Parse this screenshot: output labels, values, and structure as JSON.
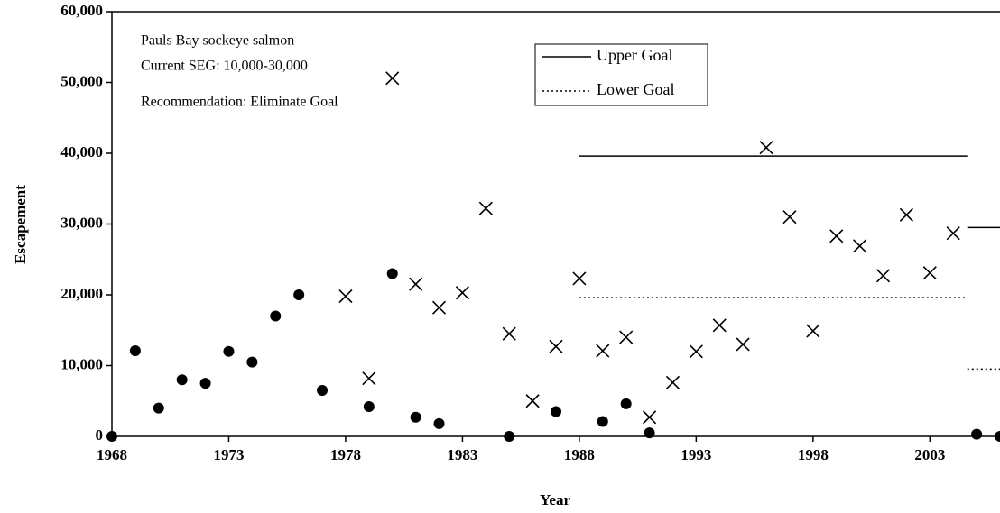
{
  "chart_data": {
    "type": "scatter",
    "x_label": "Year",
    "y_label": "Escapement",
    "annotations": [
      "Pauls Bay sockeye salmon",
      "Current SEG:  10,000-30,000",
      "Recommendation: Eliminate Goal"
    ],
    "xlim": [
      1968,
      2006
    ],
    "xticks": [
      1968,
      1973,
      1978,
      1983,
      1988,
      1993,
      1998,
      2003
    ],
    "ylim": [
      0,
      60000
    ],
    "yticks": [
      0,
      {
        "value": 10000,
        "label": "10,000"
      },
      {
        "value": 20000,
        "label": "20,000"
      },
      {
        "value": 30000,
        "label": "30,000"
      },
      {
        "value": 40000,
        "label": "40,000"
      },
      {
        "value": 50000,
        "label": "50,000"
      },
      {
        "value": 60000,
        "label": "60,000"
      }
    ],
    "series": [
      {
        "marker": "circle",
        "color": "#000000",
        "x": [
          1968,
          1969,
          1970,
          1971,
          1972,
          1973,
          1974,
          1975,
          1976,
          1977,
          1979,
          1980,
          1981,
          1982,
          1985,
          1987,
          1989,
          1990,
          1991,
          2005,
          2006
        ],
        "values": [
          0,
          12100,
          4000,
          8000,
          7500,
          12000,
          10500,
          17000,
          20000,
          6500,
          4200,
          23000,
          2700,
          1800,
          0,
          3500,
          2100,
          4600,
          500,
          300,
          0
        ]
      },
      {
        "marker": "x",
        "color": "#000000",
        "x": [
          1978,
          1979,
          1980,
          1981,
          1982,
          1983,
          1984,
          1985,
          1986,
          1987,
          1988,
          1989,
          1990,
          1991,
          1992,
          1993,
          1994,
          1995,
          1996,
          1997,
          1998,
          1999,
          2000,
          2001,
          2002,
          2003,
          2004
        ],
        "values": [
          19800,
          8200,
          50600,
          21500,
          18200,
          20300,
          32200,
          14500,
          5000,
          12700,
          22300,
          12100,
          14000,
          2700,
          7600,
          12000,
          15700,
          13000,
          40800,
          31000,
          14900,
          28300,
          26900,
          22700,
          31300,
          23100,
          28700
        ]
      }
    ],
    "goals": [
      {
        "name": "Upper Goal",
        "style": "solid",
        "segments": [
          {
            "x": [
              1988,
              2004.6
            ],
            "values": [
              39600,
              39600
            ]
          },
          {
            "x": [
              2004.6,
              2006
            ],
            "values": [
              29500,
              29500
            ]
          }
        ]
      },
      {
        "name": "Lower Goal",
        "style": "dotted",
        "segments": [
          {
            "x": [
              1988,
              2004.6
            ],
            "values": [
              19600,
              19600
            ]
          },
          {
            "x": [
              2004.6,
              2006
            ],
            "values": [
              9500,
              9500
            ]
          }
        ]
      }
    ]
  }
}
